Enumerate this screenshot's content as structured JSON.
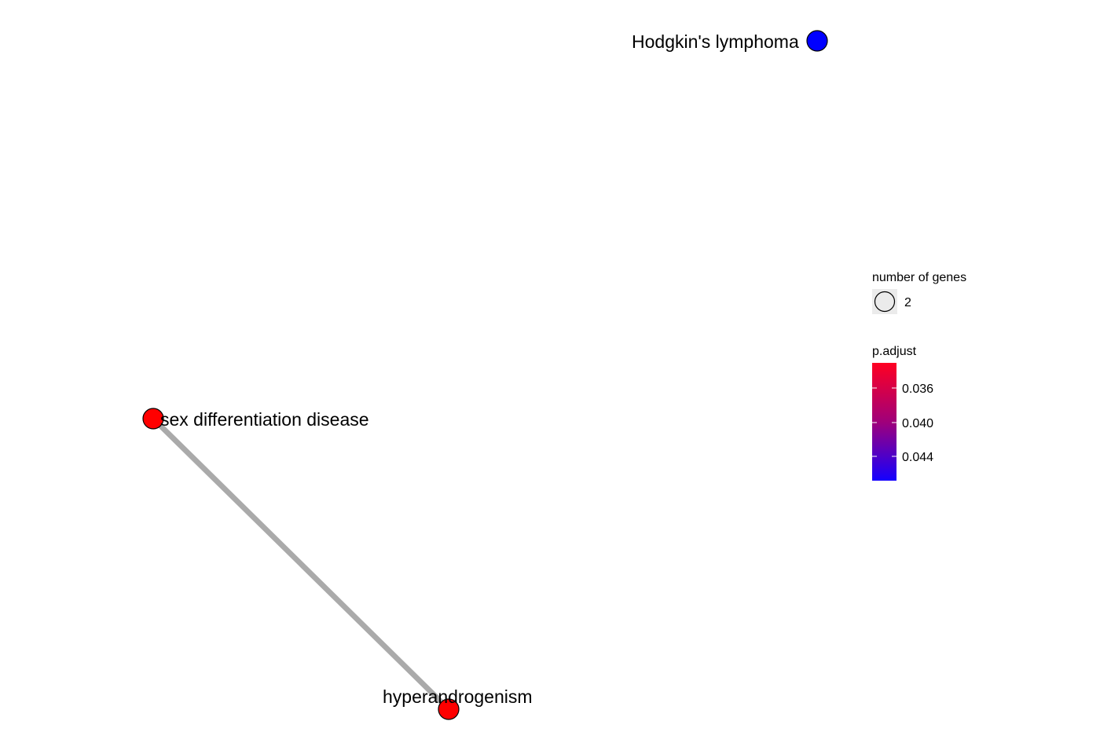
{
  "nodes": [
    {
      "id": "hodgkin",
      "label": "Hodgkin's lymphoma",
      "color": "#0000ff"
    },
    {
      "id": "sexdiff",
      "label": "sex differentiation disease",
      "color": "#ff0000"
    },
    {
      "id": "hyperandro",
      "label": "hyperandrogenism",
      "color": "#ff0000"
    }
  ],
  "edges": [
    {
      "from": "sexdiff",
      "to": "hyperandro",
      "color": "#aaaaaa"
    }
  ],
  "legend": {
    "size_title": "number of genes",
    "size_value": "2",
    "color_title": "p.adjust",
    "color_ticks": [
      "0.036",
      "0.040",
      "0.044"
    ],
    "gradient_top": "#ff0022",
    "gradient_mid": "#a0007a",
    "gradient_bottom": "#1400ff"
  }
}
